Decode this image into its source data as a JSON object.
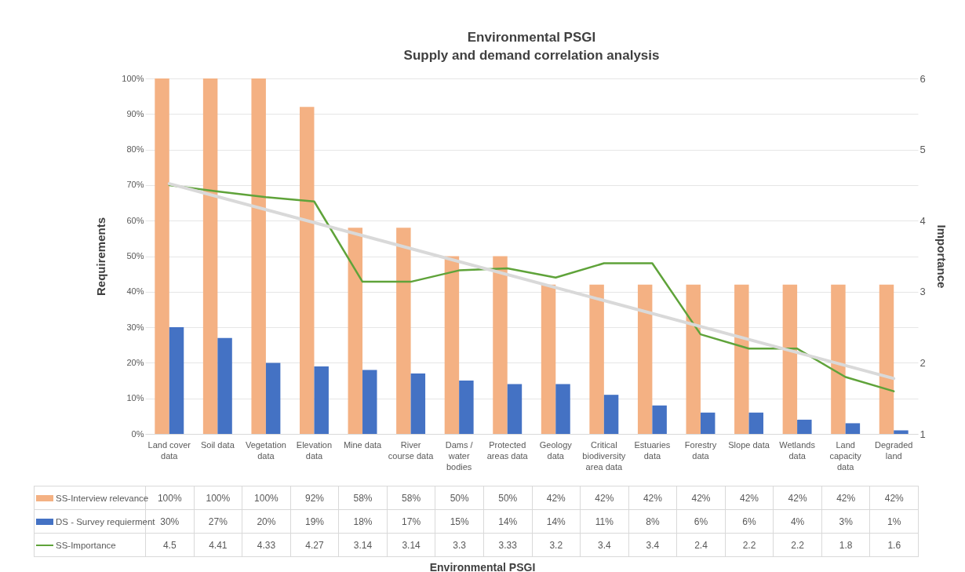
{
  "chart_data": {
    "type": "bar",
    "title": "Environmental PSGI",
    "subtitle": "Supply and demand correlation analysis",
    "annotations": [
      "Environmental PSGI"
    ],
    "ylabel": "Requirements",
    "y2label": "Importance",
    "categories": [
      "Land cover data",
      "Soil data",
      "Vegetation data",
      "Elevation data",
      "Mine data",
      "River course data",
      "Dams / water bodies",
      "Protected areas data",
      "Geology data",
      "Critical biodiversity area data",
      "Estuaries data",
      "Forestry data",
      "Slope data",
      "Wetlands data",
      "Land capacity data",
      "Degraded land"
    ],
    "series": [
      {
        "name": "SS-Interview relevance",
        "color": "#f4b183",
        "values": [
          100,
          100,
          100,
          92,
          58,
          58,
          50,
          50,
          42,
          42,
          42,
          42,
          42,
          42,
          42,
          42
        ],
        "value_labels": [
          "100%",
          "100%",
          "100%",
          "92%",
          "58%",
          "58%",
          "50%",
          "50%",
          "42%",
          "42%",
          "42%",
          "42%",
          "42%",
          "42%",
          "42%",
          "42%"
        ]
      },
      {
        "name": "DS - Survey requierment",
        "color": "#4472c4",
        "values": [
          30,
          27,
          20,
          19,
          18,
          17,
          15,
          14,
          14,
          11,
          8,
          6,
          6,
          4,
          3,
          1
        ],
        "value_labels": [
          "30%",
          "27%",
          "20%",
          "19%",
          "18%",
          "17%",
          "15%",
          "14%",
          "14%",
          "11%",
          "8%",
          "6%",
          "6%",
          "4%",
          "3%",
          "1%"
        ]
      },
      {
        "name": "SS-Importance",
        "type": "line",
        "axis": "y2",
        "color": "#5fa33a",
        "values": [
          4.5,
          4.41,
          4.33,
          4.27,
          3.14,
          3.14,
          3.3,
          3.33,
          3.2,
          3.4,
          3.4,
          2.4,
          2.2,
          2.2,
          1.8,
          1.6
        ],
        "value_labels": [
          "4.5",
          "4.41",
          "4.33",
          "4.27",
          "3.14",
          "3.14",
          "3.3",
          "3.33",
          "3.2",
          "3.4",
          "3.4",
          "2.4",
          "2.2",
          "2.2",
          "1.8",
          "1.6"
        ]
      },
      {
        "type": "line",
        "axis": "y2",
        "color": "#d9d9d9",
        "values": [
          4.52,
          null,
          null,
          null,
          null,
          null,
          null,
          null,
          null,
          null,
          null,
          null,
          null,
          null,
          null,
          1.78
        ]
      }
    ],
    "ylim": [
      0,
      100
    ],
    "yticks": [
      {
        "value": 0,
        "label": "0%"
      },
      {
        "value": 10,
        "label": "10%"
      },
      {
        "value": 20,
        "label": "20%"
      },
      {
        "value": 30,
        "label": "30%"
      },
      {
        "value": 40,
        "label": "40%"
      },
      {
        "value": 50,
        "label": "50%"
      },
      {
        "value": 60,
        "label": "60%"
      },
      {
        "value": 70,
        "label": "70%"
      },
      {
        "value": 80,
        "label": "80%"
      },
      {
        "value": 90,
        "label": "90%"
      },
      {
        "value": 100,
        "label": "100%"
      }
    ],
    "y2lim": [
      1,
      6
    ],
    "y2ticks": [
      1,
      2,
      3,
      4,
      5,
      6
    ],
    "grid": "y",
    "legend": "bottom",
    "marker": "none"
  }
}
